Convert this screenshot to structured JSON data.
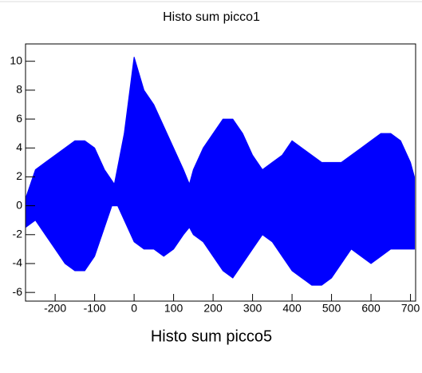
{
  "chart_data": {
    "type": "band",
    "title": "Histo sum picco1",
    "x_label": "Histo sum picco5",
    "color": "#0000ff",
    "x": [
      -275,
      -250,
      -225,
      -200,
      -175,
      -150,
      -125,
      -100,
      -75,
      -50,
      -25,
      0,
      25,
      50,
      75,
      100,
      125,
      140,
      150,
      175,
      200,
      225,
      250,
      275,
      300,
      325,
      350,
      375,
      400,
      425,
      450,
      475,
      500,
      525,
      550,
      575,
      600,
      625,
      650,
      675,
      700,
      710
    ],
    "high": [
      0.5,
      2.5,
      3,
      3.5,
      4,
      4.5,
      4.5,
      4,
      2.5,
      1.5,
      5,
      10.3,
      8,
      7,
      5.5,
      4,
      2.5,
      1.5,
      2.5,
      4,
      5,
      6,
      6,
      5,
      3.5,
      2.5,
      3,
      3.5,
      4.5,
      4,
      3.5,
      3,
      3,
      3,
      3.5,
      4,
      4.5,
      5,
      5,
      4.5,
      3,
      2
    ],
    "low": [
      -1.5,
      -1,
      -2,
      -3,
      -4,
      -4.5,
      -4.5,
      -3.5,
      -1.5,
      0.5,
      -1,
      -2.5,
      -3,
      -3,
      -3.5,
      -3,
      -2,
      -1.5,
      -2,
      -2.5,
      -3.5,
      -4.5,
      -5,
      -4,
      -3,
      -2,
      -2.5,
      -3.5,
      -4.5,
      -5,
      -5.5,
      -5.5,
      -5,
      -4,
      -3,
      -3.5,
      -4,
      -3.5,
      -3,
      -3,
      -3,
      -3
    ],
    "xlim": [
      -275,
      713
    ],
    "ylim": [
      -6.6,
      11.2
    ],
    "xticks": [
      -200,
      -100,
      0,
      100,
      200,
      300,
      400,
      500,
      600,
      700
    ],
    "yticks": [
      -6,
      -4,
      -2,
      0,
      2,
      4,
      6,
      8,
      10
    ]
  }
}
